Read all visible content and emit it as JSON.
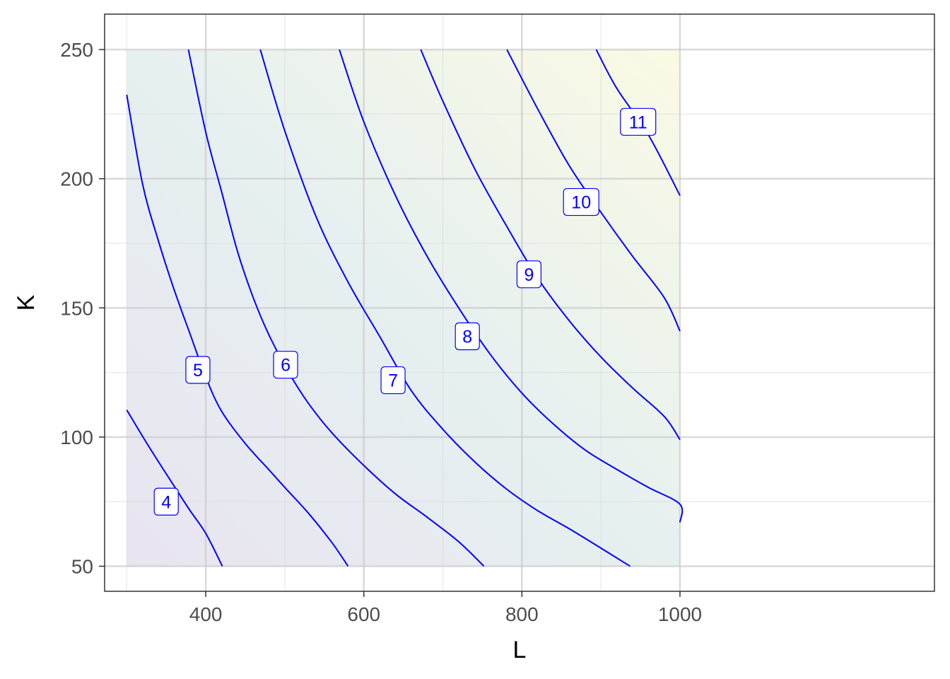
{
  "chart_data": {
    "type": "contour",
    "title": "",
    "xlabel": "L",
    "ylabel": "K",
    "xlim": [
      272,
      1322
    ],
    "ylim": [
      40.3,
      263.7
    ],
    "x_ticks": [
      400,
      600,
      800,
      1000
    ],
    "x_tick_labels": [
      "400",
      "600",
      "800",
      "1000"
    ],
    "y_ticks": [
      50,
      100,
      150,
      200,
      250
    ],
    "y_tick_labels": [
      "50",
      "100",
      "150",
      "200",
      "250"
    ],
    "x_minor": [
      300,
      500,
      700,
      900
    ],
    "y_minor": [
      75,
      125,
      175,
      225
    ],
    "grid": true,
    "legend": "none",
    "domain": {
      "L": [
        300,
        1000
      ],
      "K": [
        50,
        250
      ]
    },
    "fill_colors": {
      "low": "#e8e4f0",
      "mid": "#e6f0f0",
      "high": "#fafae4"
    },
    "line_color": "#0000ff",
    "contours": [
      {
        "label": "4",
        "points": [
          [
            300,
            110.5
          ],
          [
            320,
            100.3
          ],
          [
            340,
            90.5
          ],
          [
            360,
            81.0
          ],
          [
            380,
            71.6
          ],
          [
            400,
            62.7
          ],
          [
            421,
            50
          ]
        ],
        "label_at": [
          350,
          75
        ]
      },
      {
        "label": "5",
        "points": [
          [
            300,
            232.5
          ],
          [
            320,
            198.0
          ],
          [
            340,
            176.0
          ],
          [
            360,
            157.0
          ],
          [
            380,
            140.0
          ],
          [
            400,
            123.2
          ],
          [
            420,
            110.0
          ],
          [
            450,
            97.5
          ],
          [
            480,
            87.3
          ],
          [
            500,
            80.5
          ],
          [
            530,
            70.5
          ],
          [
            560,
            59.0
          ],
          [
            580,
            50
          ]
        ],
        "label_at": [
          390,
          126
        ]
      },
      {
        "label": "6",
        "points": [
          [
            378,
            250
          ],
          [
            400,
            218.0
          ],
          [
            420,
            195.0
          ],
          [
            440,
            172.0
          ],
          [
            460,
            154.0
          ],
          [
            480,
            139.5
          ],
          [
            505,
            125.0
          ],
          [
            530,
            113.0
          ],
          [
            560,
            101.5
          ],
          [
            600,
            89.0
          ],
          [
            640,
            78.0
          ],
          [
            680,
            69.0
          ],
          [
            720,
            59.5
          ],
          [
            752,
            50
          ]
        ],
        "label_at": [
          501,
          128
        ]
      },
      {
        "label": "7",
        "points": [
          [
            469,
            250
          ],
          [
            500,
            218.5
          ],
          [
            540,
            185.0
          ],
          [
            580,
            160.0
          ],
          [
            620,
            139.0
          ],
          [
            660,
            118.0
          ],
          [
            700,
            103.0
          ],
          [
            740,
            90.5
          ],
          [
            780,
            80.0
          ],
          [
            820,
            71.5
          ],
          [
            860,
            64.5
          ],
          [
            900,
            57.0
          ],
          [
            937,
            50
          ]
        ],
        "label_at": [
          637,
          122
        ]
      },
      {
        "label": "8",
        "points": [
          [
            569,
            250
          ],
          [
            600,
            222.0
          ],
          [
            640,
            193.5
          ],
          [
            680,
            170.0
          ],
          [
            720,
            150.0
          ],
          [
            760,
            132.0
          ],
          [
            800,
            117.0
          ],
          [
            840,
            105.0
          ],
          [
            880,
            95.0
          ],
          [
            920,
            87.5
          ],
          [
            960,
            80.5
          ],
          [
            1000,
            74.0
          ],
          [
            1000,
            67.0
          ]
        ],
        "label_at": [
          731,
          139
        ]
      },
      {
        "label": "9",
        "points": [
          [
            672,
            250
          ],
          [
            700,
            230.0
          ],
          [
            740,
            204.0
          ],
          [
            780,
            182.0
          ],
          [
            820,
            161.5
          ],
          [
            860,
            145.0
          ],
          [
            900,
            131.0
          ],
          [
            940,
            119.0
          ],
          [
            980,
            108.0
          ],
          [
            1000,
            99.0
          ]
        ],
        "label_at": [
          809,
          163
        ]
      },
      {
        "label": "10",
        "points": [
          [
            781,
            250
          ],
          [
            820,
            227.0
          ],
          [
            860,
            205.0
          ],
          [
            900,
            187.0
          ],
          [
            940,
            170.0
          ],
          [
            980,
            154.0
          ],
          [
            1000,
            141.0
          ]
        ],
        "label_at": [
          875,
          191
        ]
      },
      {
        "label": "11",
        "points": [
          [
            894,
            250
          ],
          [
            920,
            235.0
          ],
          [
            960,
            217.0
          ],
          [
            1000,
            193.5
          ]
        ],
        "label_at": [
          947,
          222
        ]
      }
    ]
  }
}
